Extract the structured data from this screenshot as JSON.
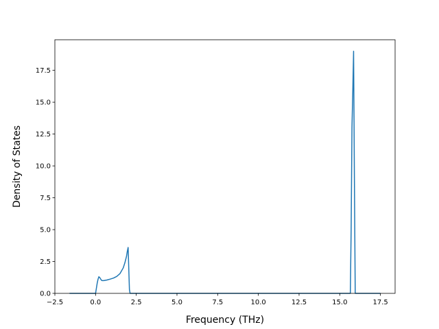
{
  "chart_data": {
    "type": "line",
    "title": "",
    "xlabel": "Frequency (THz)",
    "ylabel": "Density of States",
    "xlim": [
      -2.5,
      18.4
    ],
    "ylim": [
      0,
      19.9
    ],
    "x_ticks": [
      -2.5,
      0.0,
      2.5,
      5.0,
      7.5,
      10.0,
      12.5,
      15.0,
      17.5
    ],
    "x_tick_labels": [
      "−2.5",
      "0.0",
      "2.5",
      "5.0",
      "7.5",
      "10.0",
      "12.5",
      "15.0",
      "17.5"
    ],
    "y_ticks": [
      0.0,
      2.5,
      5.0,
      7.5,
      10.0,
      12.5,
      15.0,
      17.5
    ],
    "y_tick_labels": [
      "0.0",
      "2.5",
      "5.0",
      "7.5",
      "10.0",
      "12.5",
      "15.0",
      "17.5"
    ],
    "grid": false,
    "legend": "none",
    "color": "#1f77b4",
    "series": [
      {
        "x": [
          -1.6,
          -0.05,
          0.0,
          0.05,
          0.1,
          0.15,
          0.2,
          0.25,
          0.3,
          0.35,
          0.4,
          0.5,
          0.7,
          0.9,
          1.1,
          1.3,
          1.5,
          1.7,
          1.8,
          1.9,
          1.95,
          2.0,
          2.05,
          2.08,
          2.12,
          2.2,
          15.6,
          15.65,
          15.7,
          15.75,
          15.8,
          15.85,
          15.9,
          15.95,
          16.0,
          17.5
        ],
        "y": [
          0.0,
          0.0,
          0.0,
          0.4,
          0.8,
          1.1,
          1.3,
          1.25,
          1.15,
          1.05,
          1.0,
          1.0,
          1.05,
          1.12,
          1.2,
          1.33,
          1.55,
          2.0,
          2.4,
          2.9,
          3.3,
          3.6,
          1.5,
          0.3,
          0.0,
          0.0,
          0.0,
          0.0,
          5.0,
          13.0,
          15.8,
          19.0,
          9.0,
          0.0,
          0.0,
          0.0
        ]
      }
    ]
  }
}
